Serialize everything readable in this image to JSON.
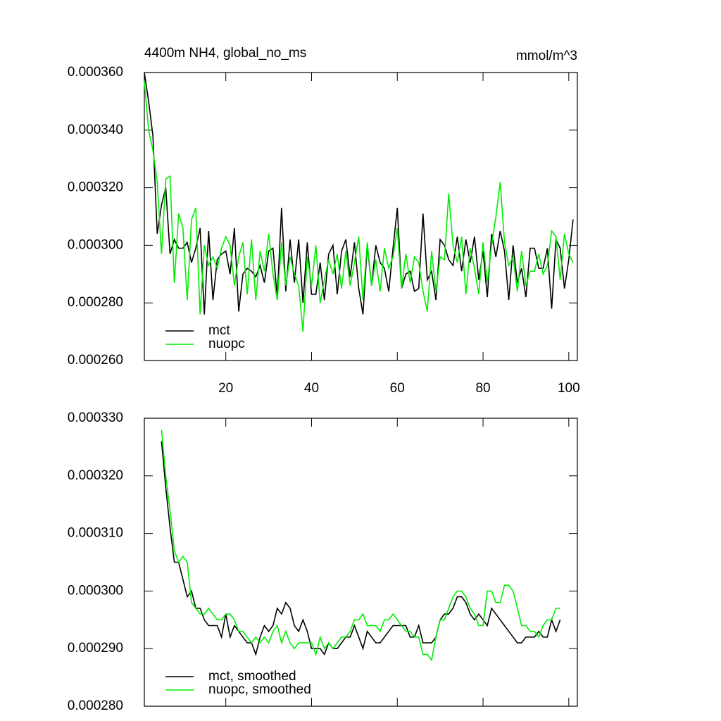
{
  "chart_data": [
    {
      "type": "line",
      "title": "4400m NH4, global_no_ms",
      "units": "mmol/m^3",
      "x": [
        1,
        2,
        3,
        4,
        5,
        6,
        7,
        8,
        9,
        10,
        11,
        12,
        13,
        14,
        15,
        16,
        17,
        18,
        19,
        20,
        21,
        22,
        23,
        24,
        25,
        26,
        27,
        28,
        29,
        30,
        31,
        32,
        33,
        34,
        35,
        36,
        37,
        38,
        39,
        40,
        41,
        42,
        43,
        44,
        45,
        46,
        47,
        48,
        49,
        50,
        51,
        52,
        53,
        54,
        55,
        56,
        57,
        58,
        59,
        60,
        61,
        62,
        63,
        64,
        65,
        66,
        67,
        68,
        69,
        70,
        71,
        72,
        73,
        74,
        75,
        76,
        77,
        78,
        79,
        80,
        81,
        82,
        83,
        84,
        85,
        86,
        87,
        88,
        89,
        90,
        91,
        92,
        93,
        94,
        95,
        96,
        97,
        98,
        99,
        100,
        101
      ],
      "series": [
        {
          "name": "mct",
          "color": "#000000",
          "values": [
            0.00036,
            0.00035,
            0.000338,
            0.000304,
            0.000314,
            0.00032,
            0.000297,
            0.000302,
            0.000299,
            0.000299,
            0.000301,
            0.000294,
            0.000299,
            0.000306,
            0.000276,
            0.000305,
            0.000281,
            0.000295,
            0.000297,
            0.000298,
            0.00029,
            0.000306,
            0.000277,
            0.00029,
            0.000292,
            0.000291,
            0.000289,
            0.000293,
            0.000287,
            0.000298,
            0.000299,
            0.000282,
            0.000313,
            0.000284,
            0.000302,
            0.000287,
            0.000302,
            0.00028,
            0.000301,
            0.000283,
            0.000283,
            0.000294,
            0.000281,
            0.000297,
            0.0003,
            0.000283,
            0.000298,
            0.000302,
            0.000289,
            0.000301,
            0.000285,
            0.000276,
            0.0003,
            0.000286,
            0.0003,
            0.000294,
            0.000292,
            0.000284,
            0.000299,
            0.000313,
            0.000285,
            0.00029,
            0.000291,
            0.000284,
            0.000285,
            0.000311,
            0.000288,
            0.000291,
            0.000281,
            0.000302,
            0.0003,
            0.000295,
            0.000293,
            0.000303,
            0.000291,
            0.000302,
            0.000294,
            0.000303,
            0.000288,
            0.000298,
            0.000282,
            0.000304,
            0.000296,
            0.000305,
            0.000298,
            0.000281,
            0.0003,
            0.000287,
            0.000292,
            0.000282,
            0.000299,
            0.000299,
            0.000292,
            0.000292,
            0.000299,
            0.000278,
            0.000302,
            0.000299,
            0.000285,
            0.000295,
            0.000309
          ]
        },
        {
          "name": "nuopc",
          "color": "#00ee00",
          "values": [
            0.000357,
            0.00034,
            0.000333,
            0.000322,
            0.000297,
            0.000323,
            0.000324,
            0.000287,
            0.000311,
            0.000306,
            0.000281,
            0.000309,
            0.000313,
            0.000276,
            0.0003,
            0.000293,
            0.000296,
            0.000292,
            0.000299,
            0.000303,
            0.0003,
            0.000286,
            0.000296,
            0.000301,
            0.000283,
            0.000302,
            0.000281,
            0.000298,
            0.000291,
            0.000304,
            0.00029,
            0.000281,
            0.000301,
            0.000286,
            0.000296,
            0.00029,
            0.000286,
            0.00027,
            0.000296,
            0.000286,
            0.0003,
            0.00028,
            0.000288,
            0.000295,
            0.00029,
            0.000297,
            0.000285,
            0.000298,
            0.000286,
            0.000294,
            0.000303,
            0.000281,
            0.000301,
            0.000286,
            0.000295,
            0.000284,
            0.000299,
            0.000292,
            0.000296,
            0.000306,
            0.000285,
            0.000297,
            0.000287,
            0.000296,
            0.000294,
            0.000284,
            0.000277,
            0.000298,
            0.000284,
            0.000296,
            0.000295,
            0.000318,
            0.0003,
            0.000294,
            0.000303,
            0.000283,
            0.000299,
            0.000292,
            0.000283,
            0.000301,
            0.000287,
            0.0003,
            0.00031,
            0.000322,
            0.000301,
            0.000293,
            0.000296,
            0.000284,
            0.000298,
            0.000286,
            0.000291,
            0.000291,
            0.000297,
            0.00029,
            0.000293,
            0.000305,
            0.000303,
            0.000288,
            0.000304,
            0.000297,
            0.000294
          ]
        }
      ],
      "xlim": [
        1,
        102
      ],
      "xticks": [
        20,
        40,
        60,
        80,
        100
      ],
      "ylim": [
        0.00026,
        0.00036
      ],
      "yticks": [
        {
          "value": 0.00026,
          "label": "0.000260"
        },
        {
          "value": 0.00028,
          "label": "0.000280"
        },
        {
          "value": 0.0003,
          "label": "0.000300"
        },
        {
          "value": 0.00032,
          "label": "0.000320"
        },
        {
          "value": 0.00034,
          "label": "0.000340"
        },
        {
          "value": 0.00036,
          "label": "0.000360"
        }
      ],
      "legend": "lower left"
    },
    {
      "type": "line",
      "x": [
        5,
        6,
        7,
        8,
        9,
        10,
        11,
        12,
        13,
        14,
        15,
        16,
        17,
        18,
        19,
        20,
        21,
        22,
        23,
        24,
        25,
        26,
        27,
        28,
        29,
        30,
        31,
        32,
        33,
        34,
        35,
        36,
        37,
        38,
        39,
        40,
        41,
        42,
        43,
        44,
        45,
        46,
        47,
        48,
        49,
        50,
        51,
        52,
        53,
        54,
        55,
        56,
        57,
        58,
        59,
        60,
        61,
        62,
        63,
        64,
        65,
        66,
        67,
        68,
        69,
        70,
        71,
        72,
        73,
        74,
        75,
        76,
        77,
        78,
        79,
        80,
        81,
        82,
        83,
        84,
        85,
        86,
        87,
        88,
        89,
        90,
        91,
        92,
        93,
        94,
        95,
        96,
        97,
        98
      ],
      "series": [
        {
          "name": "mct, smoothed",
          "color": "#000000",
          "values": [
            0.000326,
            0.000318,
            0.000311,
            0.000305,
            0.000305,
            0.000302,
            0.000299,
            0.0003,
            0.000297,
            0.000297,
            0.000295,
            0.000294,
            0.000294,
            0.000294,
            0.000292,
            0.000296,
            0.000292,
            0.000294,
            0.000293,
            0.000292,
            0.000291,
            0.000291,
            0.000289,
            0.000292,
            0.000294,
            0.000293,
            0.000294,
            0.000297,
            0.000296,
            0.000298,
            0.000297,
            0.000294,
            0.000293,
            0.000295,
            0.000293,
            0.00029,
            0.00029,
            0.00029,
            0.000289,
            0.000291,
            0.00029,
            0.00029,
            0.000291,
            0.000292,
            0.000292,
            0.000294,
            0.000292,
            0.00029,
            0.000293,
            0.000292,
            0.000291,
            0.000291,
            0.000292,
            0.000293,
            0.000294,
            0.000294,
            0.000294,
            0.000294,
            0.000292,
            0.000292,
            0.000294,
            0.000291,
            0.000291,
            0.000291,
            0.000292,
            0.000295,
            0.000296,
            0.000296,
            0.000297,
            0.000299,
            0.000299,
            0.000298,
            0.000296,
            0.000295,
            0.000296,
            0.000295,
            0.000294,
            0.000297,
            0.000296,
            0.000295,
            0.000294,
            0.000293,
            0.000292,
            0.000291,
            0.000291,
            0.000292,
            0.000292,
            0.000292,
            0.000293,
            0.000292,
            0.000292,
            0.000295,
            0.000293,
            0.000295
          ]
        },
        {
          "name": "nuopc, smoothed",
          "color": "#00ee00",
          "values": [
            0.000328,
            0.00032,
            0.000314,
            0.000307,
            0.000305,
            0.000306,
            0.000305,
            0.000298,
            0.000297,
            0.000296,
            0.000296,
            0.000297,
            0.000296,
            0.000295,
            0.000295,
            0.000296,
            0.000296,
            0.000295,
            0.000293,
            0.000293,
            0.000292,
            0.000291,
            0.000292,
            0.000291,
            0.000292,
            0.000291,
            0.000293,
            0.000294,
            0.000291,
            0.000293,
            0.000291,
            0.00029,
            0.000291,
            0.000291,
            0.000291,
            0.000291,
            0.000289,
            0.000292,
            0.00029,
            0.000291,
            0.00029,
            0.000291,
            0.000292,
            0.000292,
            0.000293,
            0.000295,
            0.000295,
            0.000296,
            0.000294,
            0.000294,
            0.000294,
            0.000293,
            0.000295,
            0.000295,
            0.000296,
            0.000295,
            0.000294,
            0.000293,
            0.000293,
            0.000292,
            0.000292,
            0.000289,
            0.000289,
            0.000288,
            0.000292,
            0.000295,
            0.000295,
            0.000297,
            0.000299,
            0.0003,
            0.0003,
            0.000299,
            0.000297,
            0.000296,
            0.000294,
            0.000294,
            0.0003,
            0.0003,
            0.000298,
            0.000298,
            0.000301,
            0.000301,
            0.0003,
            0.000297,
            0.000294,
            0.000294,
            0.000293,
            0.000293,
            0.000292,
            0.000294,
            0.000295,
            0.000295,
            0.000297,
            0.000297
          ]
        }
      ],
      "xlim": [
        1,
        102
      ],
      "xticks": [
        20,
        40,
        60,
        80,
        100
      ],
      "ylim": [
        0.00028,
        0.00033
      ],
      "yticks": [
        {
          "value": 0.00028,
          "label": "0.000280"
        },
        {
          "value": 0.00029,
          "label": "0.000290"
        },
        {
          "value": 0.0003,
          "label": "0.000300"
        },
        {
          "value": 0.00031,
          "label": "0.000310"
        },
        {
          "value": 0.00032,
          "label": "0.000320"
        },
        {
          "value": 0.00033,
          "label": "0.000330"
        }
      ],
      "legend": "lower left"
    }
  ]
}
